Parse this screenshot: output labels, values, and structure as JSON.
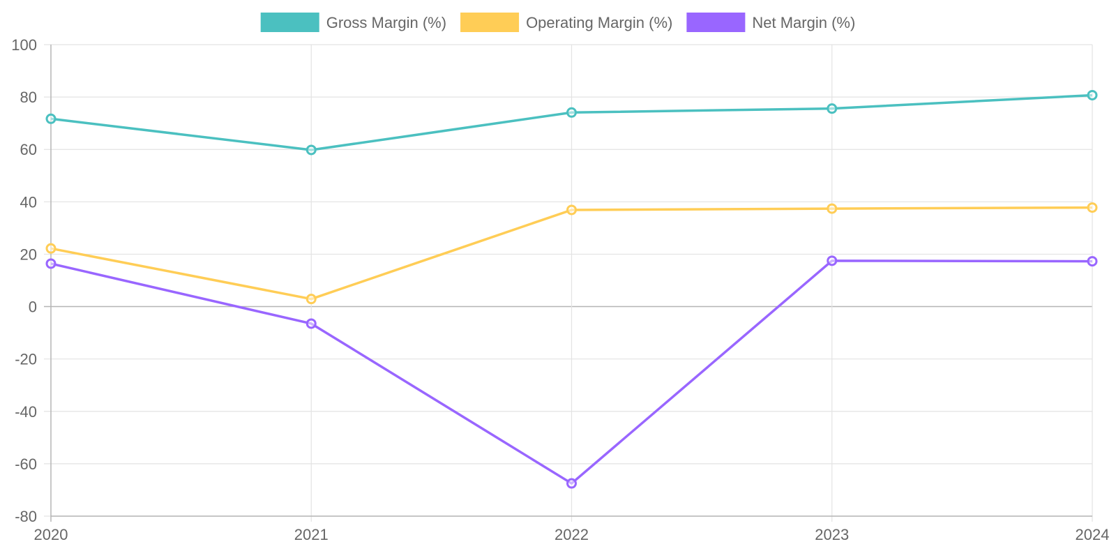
{
  "chart_data": {
    "type": "line",
    "categories": [
      "2020",
      "2021",
      "2022",
      "2023",
      "2024"
    ],
    "ylim": [
      -80,
      100
    ],
    "yticks": [
      100,
      80,
      60,
      40,
      20,
      0,
      -20,
      -40,
      -60,
      -80
    ],
    "legend_position": "top-center",
    "grid": true,
    "series": [
      {
        "name": "Gross Margin (%)",
        "color": "#4bc0c0",
        "values": [
          71.7,
          59.8,
          74.1,
          75.6,
          80.7
        ]
      },
      {
        "name": "Operating Margin (%)",
        "color": "#ffcd56",
        "values": [
          22.2,
          2.9,
          36.9,
          37.4,
          37.8
        ]
      },
      {
        "name": "Net Margin (%)",
        "color": "#9966ff",
        "values": [
          16.4,
          -6.5,
          -67.5,
          17.5,
          17.3
        ]
      }
    ]
  }
}
